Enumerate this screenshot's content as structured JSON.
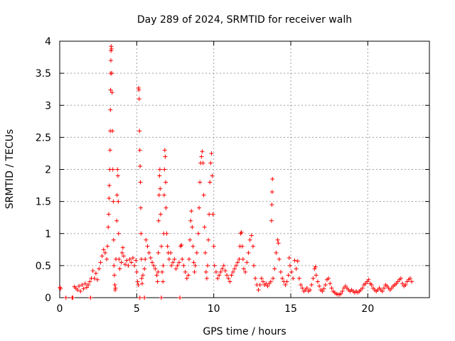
{
  "chart_data": {
    "type": "scatter",
    "title": "Day 289 of 2024, SRMTID for receiver walh",
    "xlabel": "GPS time / hours",
    "ylabel": "SRMTID / TECUs",
    "xlim": [
      0,
      24
    ],
    "ylim": [
      0,
      4
    ],
    "x_ticks": [
      0,
      5,
      10,
      15,
      20
    ],
    "x_tick_labels": [
      "0",
      "5",
      "10",
      "15",
      "20"
    ],
    "y_ticks": [
      0,
      0.5,
      1,
      1.5,
      2,
      2.5,
      3,
      3.5,
      4
    ],
    "y_tick_labels": [
      "0",
      "0.5",
      "1",
      "1.5",
      "2",
      "2.5",
      "3",
      "3.5",
      "4"
    ],
    "grid": true,
    "marker": "+",
    "marker_color": "#ff0000",
    "series": [
      {
        "name": "SRMTID",
        "points": [
          [
            0.02,
            0.16
          ],
          [
            0.05,
            0.14
          ],
          [
            0.4,
            0.0
          ],
          [
            0.8,
            0.0
          ],
          [
            0.85,
            0.0
          ],
          [
            0.95,
            0.17
          ],
          [
            1.05,
            0.15
          ],
          [
            1.15,
            0.12
          ],
          [
            1.25,
            0.18
          ],
          [
            1.35,
            0.1
          ],
          [
            1.45,
            0.2
          ],
          [
            1.55,
            0.14
          ],
          [
            1.65,
            0.22
          ],
          [
            1.75,
            0.16
          ],
          [
            1.85,
            0.2
          ],
          [
            1.95,
            0.25
          ],
          [
            2.05,
            0.3
          ],
          [
            2.15,
            0.42
          ],
          [
            2.25,
            0.3
          ],
          [
            2.35,
            0.38
          ],
          [
            2.45,
            0.28
          ],
          [
            2.55,
            0.45
          ],
          [
            2.65,
            0.55
          ],
          [
            2.75,
            0.65
          ],
          [
            2.85,
            0.75
          ],
          [
            2.95,
            0.7
          ],
          [
            3.05,
            0.6
          ],
          [
            3.1,
            0.8
          ],
          [
            3.15,
            1.1
          ],
          [
            3.18,
            1.3
          ],
          [
            3.2,
            1.55
          ],
          [
            3.22,
            1.75
          ],
          [
            3.25,
            2.0
          ],
          [
            3.27,
            2.3
          ],
          [
            3.28,
            2.6
          ],
          [
            3.29,
            2.93
          ],
          [
            3.3,
            3.24
          ],
          [
            3.31,
            3.5
          ],
          [
            3.32,
            3.7
          ],
          [
            3.33,
            3.85
          ],
          [
            3.34,
            3.92
          ],
          [
            3.36,
            3.88
          ],
          [
            3.38,
            3.5
          ],
          [
            3.4,
            3.2
          ],
          [
            3.42,
            2.6
          ],
          [
            3.45,
            2.0
          ],
          [
            3.48,
            1.5
          ],
          [
            3.5,
            0.9
          ],
          [
            3.52,
            0.5
          ],
          [
            3.55,
            0.35
          ],
          [
            3.58,
            0.2
          ],
          [
            3.6,
            0.12
          ],
          [
            3.62,
            0.15
          ],
          [
            3.65,
            0.6
          ],
          [
            3.7,
            1.2
          ],
          [
            3.72,
            1.6
          ],
          [
            3.75,
            2.0
          ],
          [
            3.78,
            1.9
          ],
          [
            3.8,
            1.5
          ],
          [
            3.82,
            1.0
          ],
          [
            3.85,
            0.6
          ],
          [
            3.9,
            0.45
          ],
          [
            4.0,
            0.55
          ],
          [
            4.05,
            0.7
          ],
          [
            4.1,
            0.78
          ],
          [
            4.15,
            0.65
          ],
          [
            4.25,
            0.52
          ],
          [
            4.35,
            0.58
          ],
          [
            4.45,
            0.5
          ],
          [
            4.55,
            0.6
          ],
          [
            4.65,
            0.55
          ],
          [
            4.75,
            0.62
          ],
          [
            4.85,
            0.5
          ],
          [
            4.95,
            0.58
          ],
          [
            5.0,
            0.4
          ],
          [
            5.05,
            0.25
          ],
          [
            5.1,
            0.2
          ],
          [
            5.12,
            3.27
          ],
          [
            5.14,
            3.24
          ],
          [
            5.16,
            3.1
          ],
          [
            5.18,
            2.6
          ],
          [
            5.2,
            2.3
          ],
          [
            5.22,
            2.05
          ],
          [
            5.24,
            1.8
          ],
          [
            5.26,
            1.4
          ],
          [
            5.28,
            1.0
          ],
          [
            5.3,
            0.6
          ],
          [
            5.32,
            0.3
          ],
          [
            5.35,
            0.22
          ],
          [
            5.4,
            0.35
          ],
          [
            5.5,
            0.45
          ],
          [
            5.55,
            0.6
          ],
          [
            5.6,
            0.9
          ],
          [
            5.7,
            0.8
          ],
          [
            5.8,
            0.7
          ],
          [
            5.9,
            0.62
          ],
          [
            6.0,
            0.55
          ],
          [
            6.1,
            0.5
          ],
          [
            6.2,
            0.45
          ],
          [
            6.3,
            0.35
          ],
          [
            6.35,
            0.25
          ],
          [
            6.38,
            0.4
          ],
          [
            6.4,
            0.7
          ],
          [
            6.42,
            1.2
          ],
          [
            6.45,
            1.6
          ],
          [
            6.48,
            1.9
          ],
          [
            6.5,
            2.0
          ],
          [
            6.52,
            1.7
          ],
          [
            6.55,
            1.3
          ],
          [
            6.6,
            0.8
          ],
          [
            6.65,
            0.4
          ],
          [
            6.7,
            0.25
          ],
          [
            6.72,
            0.5
          ],
          [
            6.75,
            1.0
          ],
          [
            6.78,
            1.6
          ],
          [
            6.8,
            2.0
          ],
          [
            6.82,
            2.3
          ],
          [
            6.85,
            2.2
          ],
          [
            6.88,
            1.8
          ],
          [
            6.9,
            1.4
          ],
          [
            6.95,
            1.0
          ],
          [
            7.0,
            0.8
          ],
          [
            7.05,
            0.7
          ],
          [
            7.1,
            0.6
          ],
          [
            7.2,
            0.7
          ],
          [
            7.25,
            0.5
          ],
          [
            7.35,
            0.55
          ],
          [
            7.45,
            0.6
          ],
          [
            7.55,
            0.45
          ],
          [
            7.65,
            0.5
          ],
          [
            7.75,
            0.55
          ],
          [
            7.85,
            0.8
          ],
          [
            7.9,
            0.82
          ],
          [
            7.95,
            0.6
          ],
          [
            8.05,
            0.5
          ],
          [
            8.15,
            0.4
          ],
          [
            8.25,
            0.3
          ],
          [
            8.35,
            0.35
          ],
          [
            8.4,
            0.6
          ],
          [
            8.45,
            0.9
          ],
          [
            8.5,
            1.2
          ],
          [
            8.55,
            1.35
          ],
          [
            8.6,
            1.1
          ],
          [
            8.65,
            0.8
          ],
          [
            8.7,
            0.55
          ],
          [
            8.75,
            0.4
          ],
          [
            8.8,
            0.5
          ],
          [
            8.9,
            0.7
          ],
          [
            9.0,
            1.0
          ],
          [
            9.05,
            1.4
          ],
          [
            9.1,
            1.8
          ],
          [
            9.15,
            2.1
          ],
          [
            9.2,
            2.2
          ],
          [
            9.25,
            2.28
          ],
          [
            9.3,
            2.1
          ],
          [
            9.35,
            1.6
          ],
          [
            9.4,
            1.1
          ],
          [
            9.45,
            0.7
          ],
          [
            9.5,
            0.4
          ],
          [
            9.55,
            0.3
          ],
          [
            9.6,
            0.5
          ],
          [
            9.65,
            0.9
          ],
          [
            9.7,
            1.3
          ],
          [
            9.75,
            1.8
          ],
          [
            9.8,
            2.1
          ],
          [
            9.85,
            2.25
          ],
          [
            9.9,
            1.9
          ],
          [
            9.95,
            1.3
          ],
          [
            10.0,
            0.8
          ],
          [
            10.05,
            0.5
          ],
          [
            10.15,
            0.4
          ],
          [
            10.25,
            0.3
          ],
          [
            10.35,
            0.35
          ],
          [
            10.45,
            0.4
          ],
          [
            10.55,
            0.45
          ],
          [
            10.65,
            0.5
          ],
          [
            10.75,
            0.42
          ],
          [
            10.85,
            0.35
          ],
          [
            10.95,
            0.3
          ],
          [
            11.05,
            0.25
          ],
          [
            11.15,
            0.35
          ],
          [
            11.25,
            0.4
          ],
          [
            11.35,
            0.45
          ],
          [
            11.45,
            0.5
          ],
          [
            11.55,
            0.55
          ],
          [
            11.65,
            0.6
          ],
          [
            11.7,
            0.8
          ],
          [
            11.75,
            1.0
          ],
          [
            11.8,
            1.02
          ],
          [
            11.85,
            0.8
          ],
          [
            11.9,
            0.6
          ],
          [
            11.95,
            0.45
          ],
          [
            12.05,
            0.4
          ],
          [
            12.15,
            0.55
          ],
          [
            12.25,
            0.7
          ],
          [
            12.35,
            0.9
          ],
          [
            12.45,
            0.97
          ],
          [
            12.55,
            0.8
          ],
          [
            12.6,
            0.5
          ],
          [
            12.7,
            0.3
          ],
          [
            12.8,
            0.2
          ],
          [
            12.9,
            0.12
          ],
          [
            13.0,
            0.2
          ],
          [
            13.1,
            0.3
          ],
          [
            13.2,
            0.25
          ],
          [
            13.3,
            0.2
          ],
          [
            13.4,
            0.22
          ],
          [
            13.5,
            0.18
          ],
          [
            13.6,
            0.22
          ],
          [
            13.7,
            0.25
          ],
          [
            13.75,
            1.2
          ],
          [
            13.77,
            1.45
          ],
          [
            13.79,
            1.65
          ],
          [
            13.81,
            1.85
          ],
          [
            13.85,
            0.3
          ],
          [
            13.95,
            0.45
          ],
          [
            14.05,
            0.7
          ],
          [
            14.15,
            0.9
          ],
          [
            14.2,
            0.85
          ],
          [
            14.25,
            0.6
          ],
          [
            14.35,
            0.4
          ],
          [
            14.45,
            0.3
          ],
          [
            14.55,
            0.25
          ],
          [
            14.65,
            0.2
          ],
          [
            14.75,
            0.25
          ],
          [
            14.85,
            0.35
          ],
          [
            14.9,
            0.62
          ],
          [
            14.95,
            0.5
          ],
          [
            15.05,
            0.4
          ],
          [
            15.15,
            0.3
          ],
          [
            15.25,
            0.58
          ],
          [
            15.35,
            0.45
          ],
          [
            15.45,
            0.57
          ],
          [
            15.55,
            0.3
          ],
          [
            15.65,
            0.2
          ],
          [
            15.75,
            0.15
          ],
          [
            15.85,
            0.1
          ],
          [
            15.95,
            0.12
          ],
          [
            16.05,
            0.15
          ],
          [
            16.15,
            0.1
          ],
          [
            16.25,
            0.12
          ],
          [
            16.35,
            0.2
          ],
          [
            16.45,
            0.3
          ],
          [
            16.55,
            0.45
          ],
          [
            16.6,
            0.48
          ],
          [
            16.65,
            0.35
          ],
          [
            16.75,
            0.25
          ],
          [
            16.85,
            0.18
          ],
          [
            16.95,
            0.12
          ],
          [
            17.05,
            0.1
          ],
          [
            17.15,
            0.14
          ],
          [
            17.25,
            0.2
          ],
          [
            17.35,
            0.28
          ],
          [
            17.45,
            0.3
          ],
          [
            17.55,
            0.22
          ],
          [
            17.65,
            0.15
          ],
          [
            17.75,
            0.1
          ],
          [
            17.85,
            0.08
          ],
          [
            17.95,
            0.06
          ],
          [
            18.05,
            0.05
          ],
          [
            18.15,
            0.05
          ],
          [
            18.25,
            0.06
          ],
          [
            18.35,
            0.1
          ],
          [
            18.45,
            0.15
          ],
          [
            18.55,
            0.18
          ],
          [
            18.65,
            0.15
          ],
          [
            18.75,
            0.12
          ],
          [
            18.85,
            0.1
          ],
          [
            18.95,
            0.12
          ],
          [
            19.05,
            0.1
          ],
          [
            19.15,
            0.08
          ],
          [
            19.25,
            0.1
          ],
          [
            19.35,
            0.08
          ],
          [
            19.45,
            0.1
          ],
          [
            19.55,
            0.12
          ],
          [
            19.65,
            0.15
          ],
          [
            19.75,
            0.2
          ],
          [
            19.85,
            0.22
          ],
          [
            19.95,
            0.25
          ],
          [
            20.05,
            0.28
          ],
          [
            20.15,
            0.22
          ],
          [
            20.25,
            0.2
          ],
          [
            20.35,
            0.15
          ],
          [
            20.45,
            0.12
          ],
          [
            20.55,
            0.1
          ],
          [
            20.65,
            0.12
          ],
          [
            20.75,
            0.15
          ],
          [
            20.85,
            0.12
          ],
          [
            20.95,
            0.1
          ],
          [
            21.05,
            0.15
          ],
          [
            21.15,
            0.2
          ],
          [
            21.25,
            0.18
          ],
          [
            21.35,
            0.15
          ],
          [
            21.45,
            0.12
          ],
          [
            21.55,
            0.15
          ],
          [
            21.65,
            0.18
          ],
          [
            21.75,
            0.2
          ],
          [
            21.85,
            0.22
          ],
          [
            21.95,
            0.25
          ],
          [
            22.05,
            0.28
          ],
          [
            22.15,
            0.3
          ],
          [
            22.25,
            0.22
          ],
          [
            22.35,
            0.18
          ],
          [
            22.45,
            0.2
          ],
          [
            22.55,
            0.25
          ],
          [
            22.65,
            0.28
          ],
          [
            22.75,
            0.3
          ],
          [
            22.85,
            0.25
          ],
          [
            2.0,
            0.0
          ],
          [
            5.2,
            0.0
          ],
          [
            5.5,
            0.0
          ],
          [
            6.6,
            0.0
          ],
          [
            7.8,
            0.0
          ]
        ]
      }
    ]
  }
}
